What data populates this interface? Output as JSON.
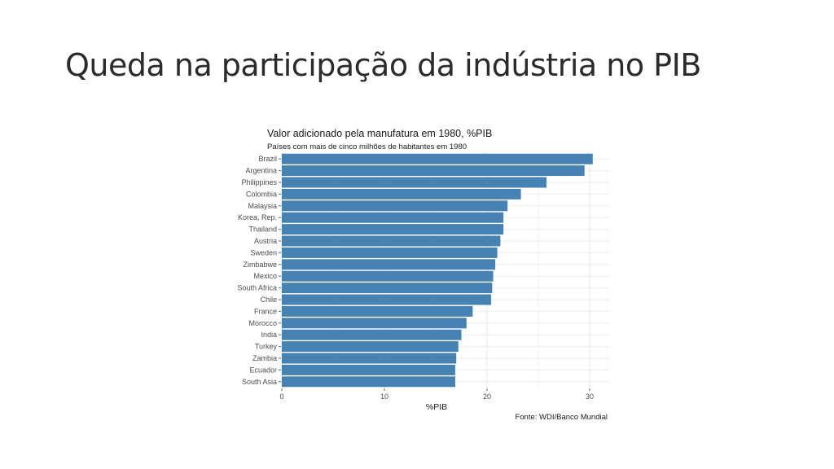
{
  "slide": {
    "title": "Queda na participação da indústria no PIB"
  },
  "chart_data": {
    "type": "bar",
    "orientation": "horizontal",
    "title": "Valor adicionado pela manufatura em 1980, %PIB",
    "subtitle": "Países com mais de cinco milhões de habitantes em 1980",
    "xlabel": "%PIB",
    "ylabel": "",
    "source": "Fonte: WDI/Banco Mundial",
    "xlim": [
      0,
      32
    ],
    "xticks": [
      0,
      10,
      20,
      30
    ],
    "grid": true,
    "color": "#4682b4",
    "categories": [
      "Brazil",
      "Argentina",
      "Philippines",
      "Colombia",
      "Malaysia",
      "Korea, Rep.",
      "Thailand",
      "Austria",
      "Sweden",
      "Zimbabwe",
      "Mexico",
      "South Africa",
      "Chile",
      "France",
      "Morocco",
      "India",
      "Turkey",
      "Zambia",
      "Ecuador",
      "South Asia"
    ],
    "values": [
      30.3,
      29.5,
      25.8,
      23.3,
      22.0,
      21.6,
      21.6,
      21.3,
      21.0,
      20.8,
      20.6,
      20.5,
      20.4,
      18.6,
      18.0,
      17.5,
      17.2,
      17.0,
      16.9,
      16.9
    ]
  }
}
